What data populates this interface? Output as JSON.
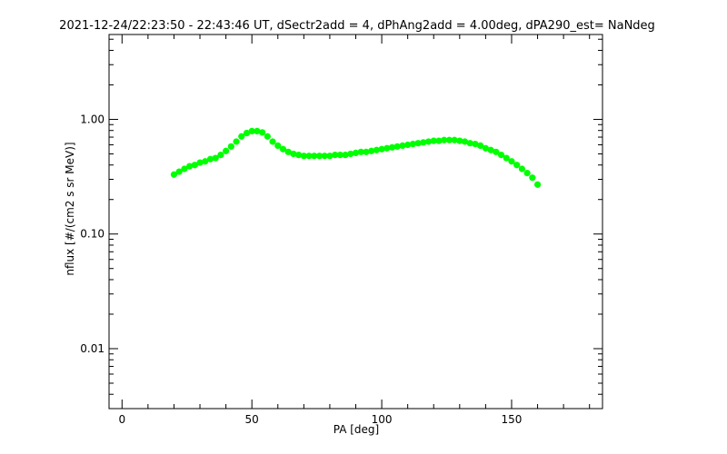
{
  "chart_data": {
    "type": "scatter",
    "title": "2021-12-24/22:23:50 - 22:43:46 UT, dSectr2add = 4, dPhAng2add = 4.00deg, dPA290_est=   NaNdeg",
    "xlabel": "PA [deg]",
    "ylabel": "nflux [#/(cm2 s sr MeV)]",
    "xlim": [
      -5,
      185
    ],
    "ylim": [
      0.003,
      5.5
    ],
    "yscale": "log",
    "x_ticks": [
      "0",
      "50",
      "100",
      "150"
    ],
    "y_ticks": [
      "0.01",
      "0.10",
      "1.00"
    ],
    "series": [
      {
        "color": "#00ff00",
        "x": [
          20,
          22,
          24,
          26,
          28,
          30,
          32,
          34,
          36,
          38,
          40,
          42,
          44,
          46,
          48,
          50,
          52,
          54,
          56,
          58,
          60,
          62,
          64,
          66,
          68,
          70,
          72,
          74,
          76,
          78,
          80,
          82,
          84,
          86,
          88,
          90,
          92,
          94,
          96,
          98,
          100,
          102,
          104,
          106,
          108,
          110,
          112,
          114,
          116,
          118,
          120,
          122,
          124,
          126,
          128,
          130,
          132,
          134,
          136,
          138,
          140,
          142,
          144,
          146,
          148,
          150,
          152,
          154,
          156,
          158,
          160
        ],
        "y": [
          0.33,
          0.35,
          0.37,
          0.39,
          0.4,
          0.42,
          0.43,
          0.45,
          0.46,
          0.49,
          0.53,
          0.58,
          0.64,
          0.71,
          0.76,
          0.79,
          0.79,
          0.77,
          0.71,
          0.64,
          0.59,
          0.55,
          0.52,
          0.5,
          0.49,
          0.48,
          0.48,
          0.48,
          0.48,
          0.48,
          0.48,
          0.49,
          0.49,
          0.49,
          0.5,
          0.51,
          0.52,
          0.52,
          0.53,
          0.54,
          0.55,
          0.56,
          0.57,
          0.58,
          0.59,
          0.6,
          0.61,
          0.62,
          0.63,
          0.64,
          0.65,
          0.65,
          0.66,
          0.66,
          0.66,
          0.65,
          0.64,
          0.62,
          0.61,
          0.59,
          0.56,
          0.54,
          0.52,
          0.49,
          0.46,
          0.43,
          0.4,
          0.37,
          0.34,
          0.31,
          0.27
        ]
      }
    ]
  }
}
